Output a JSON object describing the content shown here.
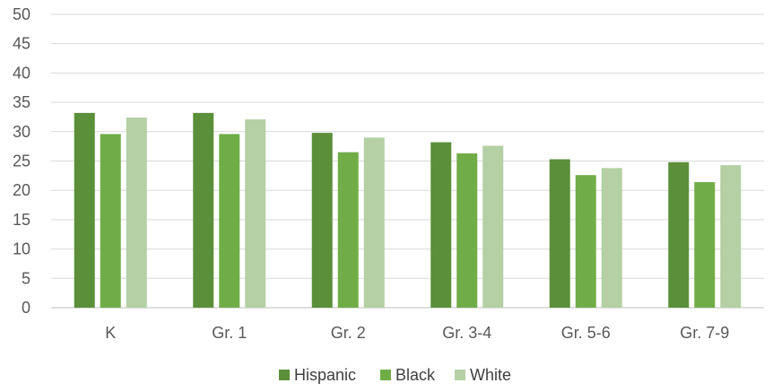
{
  "chart_data": {
    "type": "bar",
    "categories": [
      "K",
      "Gr. 1",
      "Gr. 2",
      "Gr. 3-4",
      "Gr. 5-6",
      "Gr. 7-9"
    ],
    "series": [
      {
        "name": "Hispanic",
        "color": "#5b8f3a",
        "values": [
          33.2,
          33.2,
          29.8,
          28.2,
          25.3,
          24.8
        ]
      },
      {
        "name": "Black",
        "color": "#70ad47",
        "values": [
          29.6,
          29.6,
          26.5,
          26.3,
          22.6,
          21.4
        ]
      },
      {
        "name": "White",
        "color": "#b4d0a4",
        "values": [
          32.4,
          32.1,
          29.0,
          27.6,
          23.8,
          24.3
        ]
      }
    ],
    "yticks": [
      "0",
      "5",
      "10",
      "15",
      "20",
      "25",
      "30",
      "35",
      "40",
      "45",
      "50"
    ],
    "ylim": [
      0,
      50
    ],
    "grid": true,
    "legend_position": "bottom"
  }
}
